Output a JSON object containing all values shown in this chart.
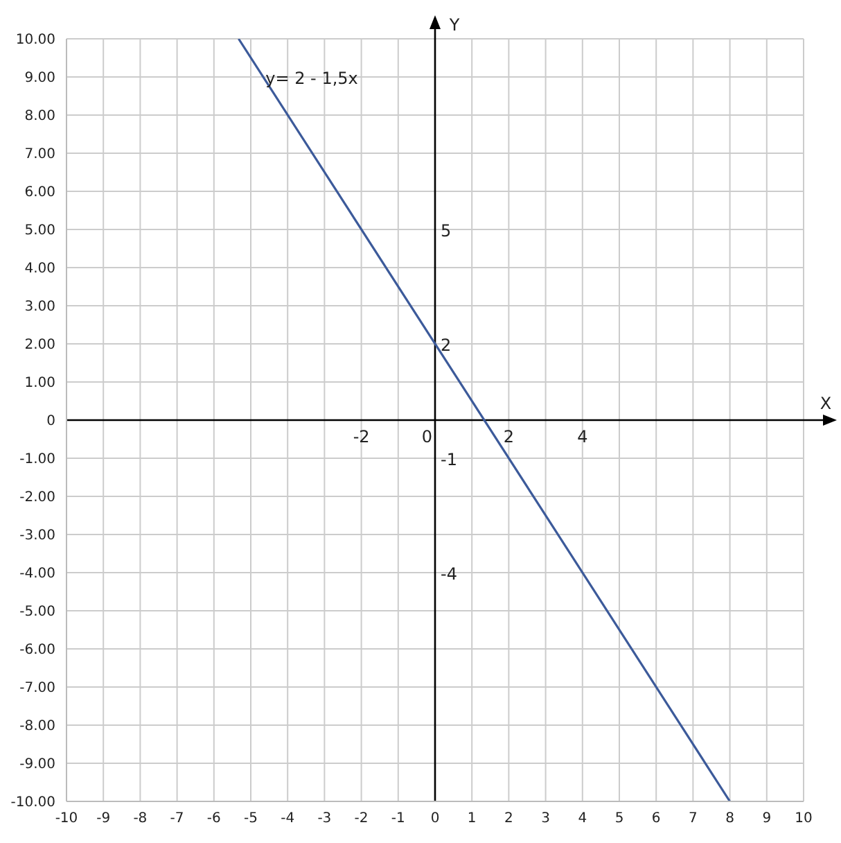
{
  "chart_data": {
    "type": "line",
    "x2label": "X",
    "y2label": "Y",
    "x": [
      -5.33,
      8
    ],
    "series": [
      {
        "color": "#3c5a9a",
        "values": [
          10,
          -10
        ]
      }
    ],
    "xlim": [
      -10,
      10
    ],
    "xticks": [
      -10,
      -9,
      -8,
      -7,
      -6,
      -5,
      -4,
      -3,
      -2,
      -1,
      0,
      1,
      2,
      3,
      4,
      5,
      6,
      7,
      8,
      9,
      10
    ],
    "ylim": [
      -10,
      10
    ],
    "yticks": [
      {
        "value": -10,
        "label": "-10.00"
      },
      {
        "value": -9,
        "label": "-9.00"
      },
      {
        "value": -8,
        "label": "-8.00"
      },
      {
        "value": -7,
        "label": "-7.00"
      },
      {
        "value": -6,
        "label": "-6.00"
      },
      {
        "value": -5,
        "label": "-5.00"
      },
      {
        "value": -4,
        "label": "-4.00"
      },
      {
        "value": -3,
        "label": "-3.00"
      },
      {
        "value": -2,
        "label": "-2.00"
      },
      {
        "value": -1,
        "label": "-1.00"
      },
      {
        "value": 0,
        "label": "0"
      },
      {
        "value": 1,
        "label": "1.00"
      },
      {
        "value": 2,
        "label": "2.00"
      },
      {
        "value": 3,
        "label": "3.00"
      },
      {
        "value": 4,
        "label": "4.00"
      },
      {
        "value": 5,
        "label": "5.00"
      },
      {
        "value": 6,
        "label": "6.00"
      },
      {
        "value": 7,
        "label": "7.00"
      },
      {
        "value": 8,
        "label": "8.00"
      },
      {
        "value": 9,
        "label": "9.00"
      },
      {
        "value": 10,
        "label": "10.00"
      }
    ],
    "grid": true,
    "marker": "none",
    "line_style": "solid",
    "x2lim": [
      -10,
      10
    ],
    "x2ticks": [
      -2,
      0,
      2,
      4
    ],
    "y2lim": [
      -10,
      10
    ],
    "y2ticks": [
      -4,
      -1,
      2,
      5
    ],
    "annotations": [
      {
        "text": "y= 2 - 1,5x",
        "x": -4.6,
        "y": 9
      }
    ]
  }
}
